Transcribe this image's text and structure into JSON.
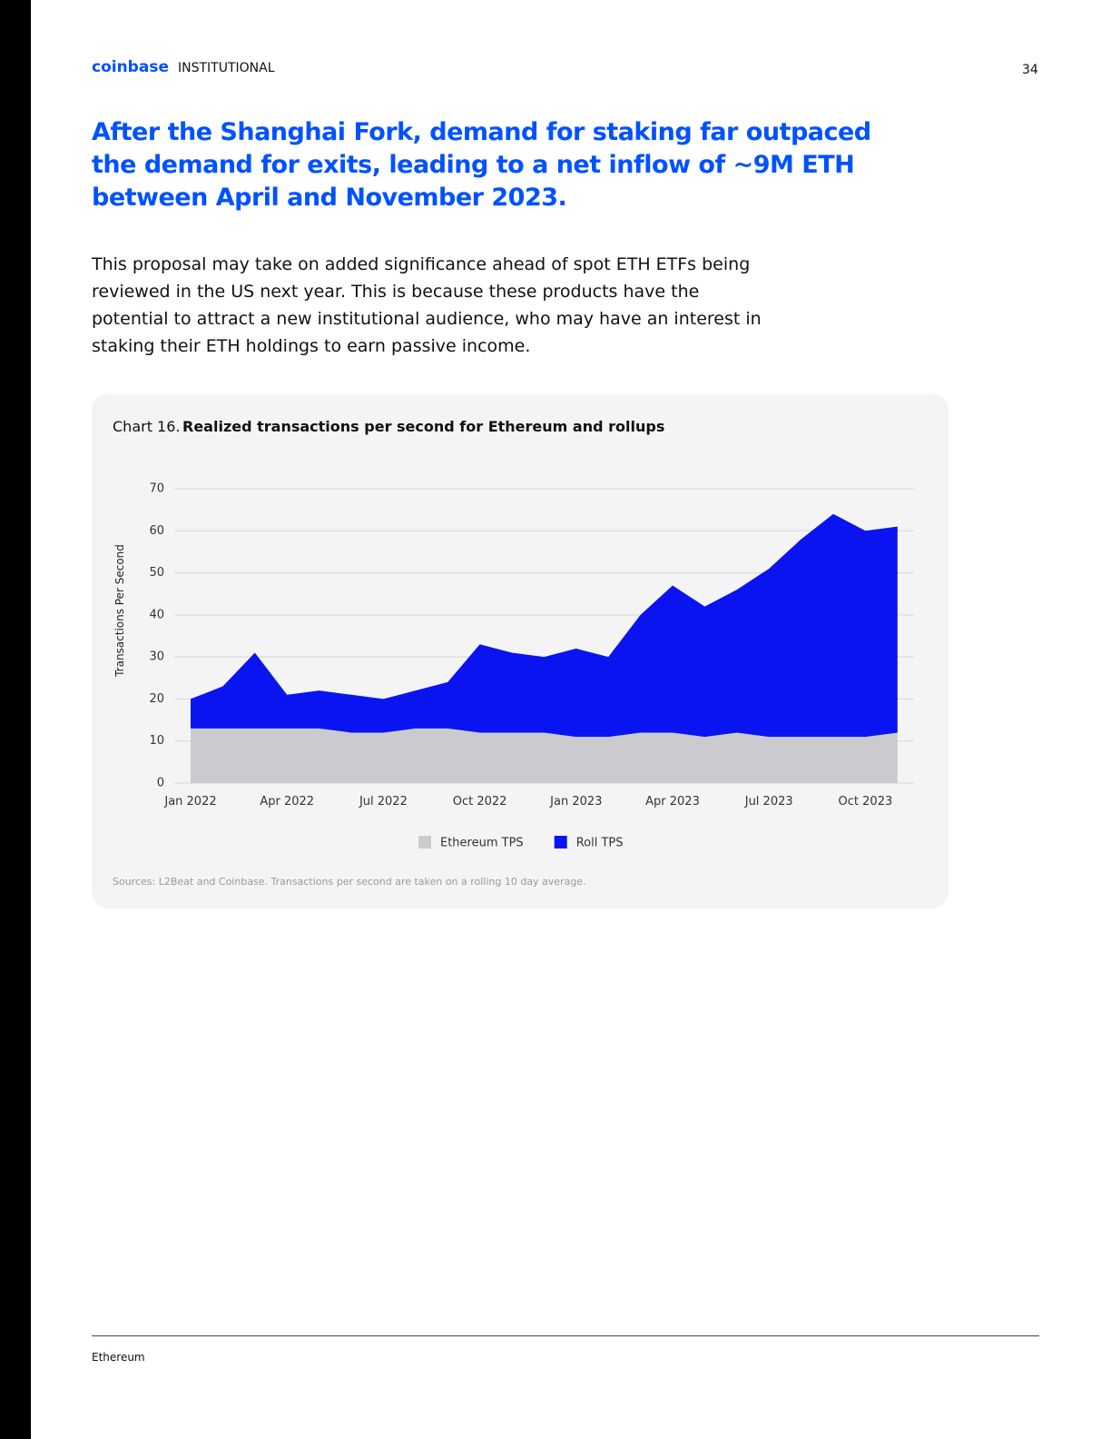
{
  "header": {
    "brand": "coinbase",
    "division": "INSTITUTIONAL",
    "page_number": "34"
  },
  "heading": [
    "After the Shanghai Fork, demand for staking far outpaced",
    "the demand for exits, leading to a net inflow of ~9M ETH",
    "between April and November 2023."
  ],
  "body": [
    "This proposal may take on added significance ahead of spot ETH ETFs being",
    "reviewed in the US next year. This is because these products have the",
    "potential to attract a new institutional audience, who may have an interest in",
    "staking their ETH holdings to earn passive income."
  ],
  "chart_data": {
    "type": "stacked_area",
    "label": "Chart 16.",
    "title": "Realized transactions per second for Ethereum and rollups",
    "y_label": "Transactions Per Second",
    "categories": [
      "Jan 2022",
      null,
      null,
      "Apr 2022",
      null,
      null,
      "Jul 2022",
      null,
      null,
      "Oct 2022",
      null,
      null,
      "Jan 2023",
      null,
      null,
      "Apr 2023",
      null,
      null,
      "Jul 2023",
      null,
      null,
      "Oct 2023",
      null
    ],
    "series": [
      {
        "name": "Ethereum TPS",
        "color": "#cbcbcf",
        "values": [
          13,
          13,
          13,
          13,
          13,
          12,
          12,
          13,
          13,
          12,
          12,
          12,
          11,
          11,
          12,
          12,
          11,
          12,
          11,
          11,
          11,
          11,
          12
        ]
      },
      {
        "name": "Roll TPS",
        "color": "#0a14f0",
        "values": [
          7,
          10,
          18,
          8,
          9,
          9,
          8,
          9,
          11,
          21,
          19,
          18,
          21,
          19,
          28,
          35,
          31,
          34,
          40,
          47,
          53,
          49,
          49
        ]
      }
    ],
    "ylim": [
      0,
      70
    ],
    "yticks": [
      0,
      10,
      20,
      30,
      40,
      50,
      60,
      70
    ],
    "grid": true,
    "legend": "bottom",
    "source": "Sources: L2Beat and Coinbase. Transactions per second are taken on a rolling 10 day average."
  },
  "footer": {
    "section": "Ethereum"
  }
}
